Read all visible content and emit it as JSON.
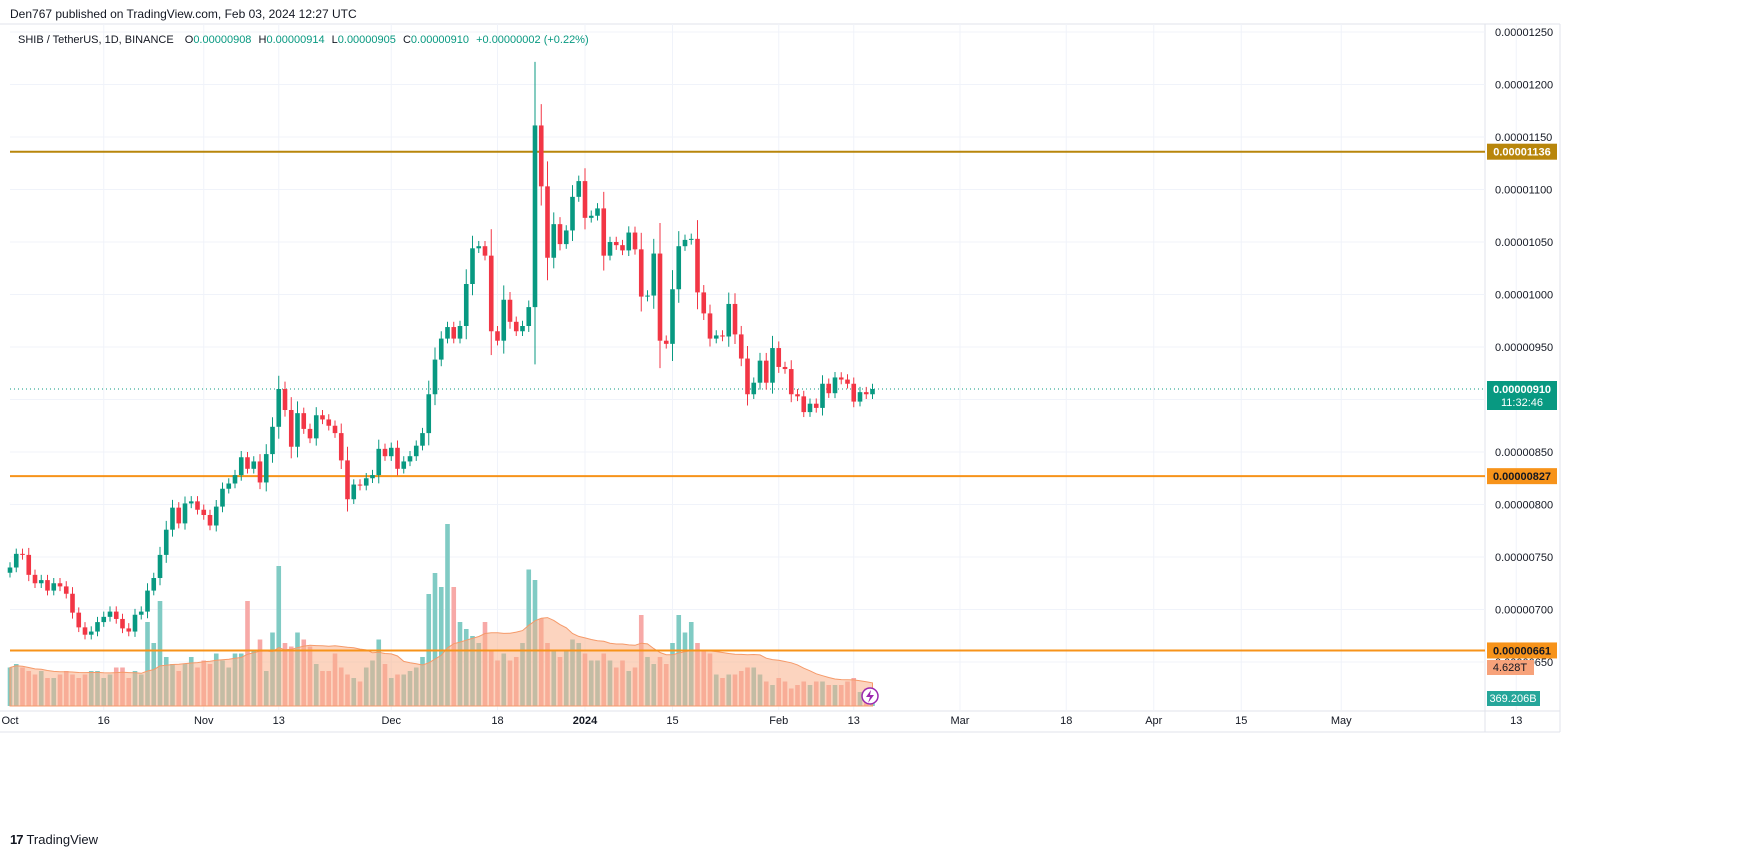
{
  "header": {
    "published": "Den767 published on TradingView.com, Feb 03, 2024 12:27 UTC"
  },
  "legend": {
    "symbol": "SHIB / TetherUS, 1D, BINANCE",
    "open_label": "O",
    "open": "0.00000908",
    "high_label": "H",
    "high": "0.00000914",
    "low_label": "L",
    "low": "0.00000905",
    "close_label": "C",
    "close": "0.00000910",
    "change": "+0.00000002 (+0.22%)"
  },
  "footer": {
    "brand": "TradingView",
    "logo": "17"
  },
  "colors": {
    "up": "#089981",
    "down": "#f23645",
    "level_gold": "#b8860b",
    "level_orange": "#f7931a",
    "last_price": "#089981",
    "grid": "#f0f3fa",
    "vol_up": "#80cbc4",
    "vol_down": "#f7a9a7",
    "vol_ma": "#f9b08a"
  },
  "chart_data": {
    "type": "candlestick",
    "title": "SHIB / TetherUS, 1D, BINANCE",
    "y_axis_ticks": [
      "0.00000650",
      "0.00000700",
      "0.00000750",
      "0.00000800",
      "0.00000850",
      "0.00000900",
      "0.00000950",
      "0.00001000",
      "0.00001050",
      "0.00001100",
      "0.00001150",
      "0.00001200",
      "0.00001250"
    ],
    "ylim": [
      6.3e-06,
      1.26e-05
    ],
    "x_axis_ticks": [
      {
        "label": "Oct",
        "day": 0
      },
      {
        "label": "16",
        "day": 15
      },
      {
        "label": "Nov",
        "day": 31
      },
      {
        "label": "13",
        "day": 43
      },
      {
        "label": "Dec",
        "day": 61
      },
      {
        "label": "18",
        "day": 78
      },
      {
        "label": "2024",
        "day": 92
      },
      {
        "label": "15",
        "day": 106
      },
      {
        "label": "Feb",
        "day": 123
      },
      {
        "label": "13",
        "day": 135
      },
      {
        "label": "Mar",
        "day": 152
      },
      {
        "label": "18",
        "day": 169
      },
      {
        "label": "Apr",
        "day": 183
      },
      {
        "label": "15",
        "day": 197
      },
      {
        "label": "May",
        "day": 213
      },
      {
        "label": "13",
        "day": 241
      }
    ],
    "horizontal_levels": [
      {
        "price": "0.00001136",
        "value": 1.136e-05,
        "color": "#b8860b"
      },
      {
        "price": "0.00000827",
        "value": 8.27e-06,
        "color": "#f7931a"
      },
      {
        "price": "0.00000661",
        "value": 6.61e-06,
        "color": "#f7931a"
      }
    ],
    "last_price": {
      "value": 9.1e-06,
      "label": "0.00000910",
      "countdown": "11:32:46"
    },
    "volume_labels": {
      "ma_label": "4.628T",
      "volume_label": "369.206B"
    },
    "closes": [
      7.4,
      7.53,
      7.52,
      7.33,
      7.25,
      7.28,
      7.18,
      7.25,
      7.22,
      7.15,
      6.97,
      6.83,
      6.76,
      6.79,
      6.88,
      6.93,
      6.98,
      6.91,
      6.82,
      6.79,
      6.95,
      6.98,
      7.18,
      7.3,
      7.52,
      7.76,
      7.97,
      7.82,
      8.01,
      8.03,
      7.95,
      7.9,
      7.8,
      7.98,
      8.15,
      8.2,
      8.28,
      8.45,
      8.34,
      8.41,
      8.21,
      8.48,
      8.74,
      9.1,
      8.9,
      8.55,
      8.87,
      8.72,
      8.63,
      8.85,
      8.81,
      8.75,
      8.68,
      8.42,
      8.05,
      8.19,
      8.18,
      8.25,
      8.28,
      8.53,
      8.46,
      8.54,
      8.34,
      8.41,
      8.46,
      8.56,
      8.68,
      9.05,
      9.38,
      9.58,
      9.69,
      9.58,
      9.7,
      10.1,
      10.44,
      10.46,
      10.37,
      9.65,
      9.56,
      9.95,
      9.74,
      9.65,
      9.7,
      9.88,
      11.61,
      11.03,
      10.35,
      10.67,
      10.48,
      10.61,
      10.93,
      11.08,
      10.73,
      10.75,
      10.82,
      10.37,
      10.5,
      10.47,
      10.42,
      10.59,
      10.43,
      9.98,
      9.99,
      10.39,
      9.56,
      9.53,
      10.05,
      10.46,
      10.52,
      10.53,
      10.02,
      9.82,
      9.58,
      9.61,
      9.6,
      9.91,
      9.62,
      9.39,
      9.05,
      9.16,
      9.37,
      9.16,
      9.49,
      9.31,
      9.29,
      9.05,
      9.03,
      8.88,
      8.96,
      8.92,
      9.15,
      9.06,
      9.21,
      9.19,
      9.15,
      8.98,
      9.07,
      9.05,
      9.1
    ],
    "volumes": [
      0.55,
      0.6,
      0.55,
      0.5,
      0.45,
      0.5,
      0.4,
      0.4,
      0.45,
      0.5,
      0.45,
      0.4,
      0.45,
      0.5,
      0.5,
      0.4,
      0.45,
      0.55,
      0.55,
      0.4,
      0.5,
      0.45,
      1.2,
      0.9,
      1.5,
      0.7,
      0.6,
      0.5,
      0.6,
      0.7,
      0.55,
      0.65,
      0.6,
      0.75,
      0.65,
      0.55,
      0.75,
      0.75,
      1.5,
      0.8,
      0.95,
      0.5,
      1.05,
      2.0,
      0.9,
      0.85,
      1.05,
      0.95,
      0.85,
      0.6,
      0.5,
      0.5,
      0.75,
      0.55,
      0.45,
      0.4,
      0.35,
      0.55,
      0.65,
      0.95,
      0.6,
      0.4,
      0.45,
      0.45,
      0.5,
      0.55,
      0.7,
      1.6,
      1.9,
      1.7,
      2.6,
      1.7,
      1.2,
      1.1,
      1.0,
      0.9,
      1.2,
      0.8,
      0.65,
      0.75,
      0.65,
      0.7,
      0.9,
      1.95,
      1.8,
      1.25,
      0.9,
      0.8,
      0.7,
      0.8,
      0.95,
      0.9,
      0.75,
      0.65,
      0.65,
      0.75,
      0.65,
      0.55,
      0.65,
      0.5,
      0.55,
      1.3,
      0.7,
      0.6,
      0.7,
      0.6,
      0.9,
      1.3,
      1.05,
      1.2,
      0.9,
      0.8,
      0.75,
      0.45,
      0.4,
      0.45,
      0.45,
      0.5,
      0.55,
      0.55,
      0.45,
      0.35,
      0.3,
      0.4,
      0.35,
      0.25,
      0.3,
      0.35,
      0.3,
      0.35,
      0.35,
      0.3,
      0.3,
      0.3,
      0.35,
      0.4,
      0.2,
      0.25,
      0.2
    ]
  }
}
